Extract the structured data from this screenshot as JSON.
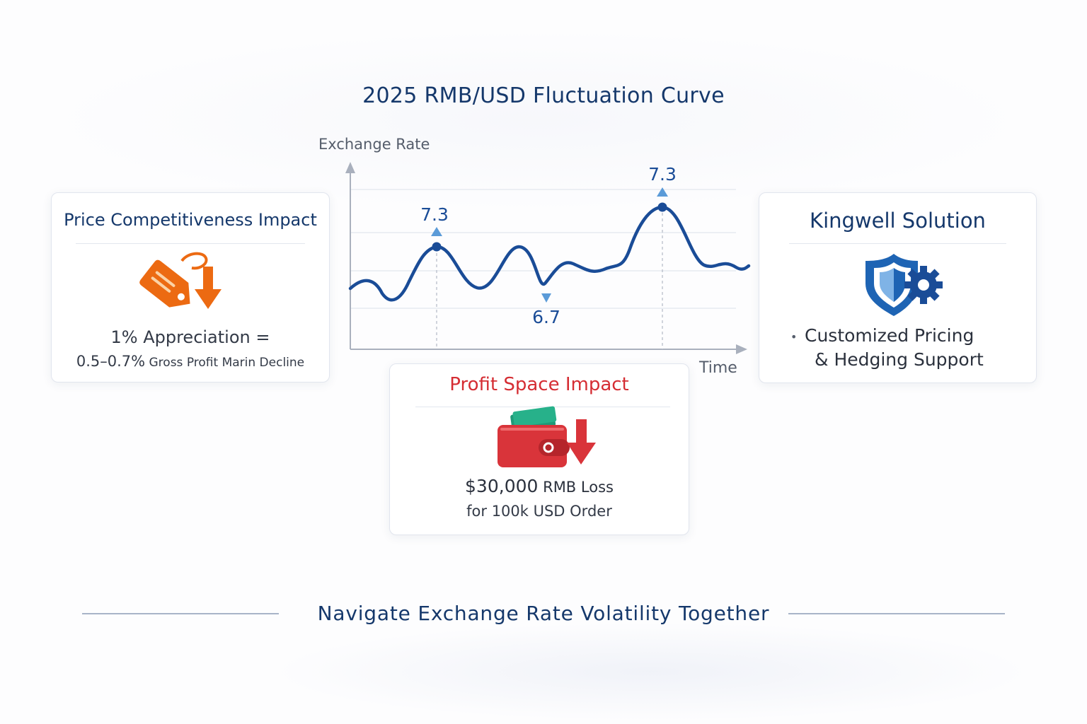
{
  "title": "2025 RMB/USD Fluctuation Curve",
  "chart_data": {
    "type": "line",
    "xlabel": "Time",
    "ylabel": "Exchange Rate",
    "annotations": [
      {
        "label": "7.3",
        "marker": "peak"
      },
      {
        "label": "6.7",
        "marker": "trough"
      },
      {
        "label": "7.3",
        "marker": "peak"
      }
    ],
    "grid": true,
    "line_color": "#1a4c97"
  },
  "cards": {
    "price": {
      "title": "Price Competitiveness Impact",
      "line1": "1% Appreciation =",
      "line2_big": "0.5–0.7%",
      "line2_small": " Gross Profit Marin Decline",
      "icon": "price-tag-down-icon",
      "accent": "#ec6a12"
    },
    "profit": {
      "title": "Profit Space Impact",
      "line1_big": "$30,000",
      "line1_small": " RMB Loss",
      "line2": "for 100k USD Order",
      "icon": "wallet-down-icon",
      "accent": "#d9343a"
    },
    "solution": {
      "title": "Kingwell Solution",
      "bullet": "•",
      "line1": "Customized Pricing",
      "line2": "& Hedging Support",
      "icon": "shield-gear-icon",
      "accent": "#1e64b4"
    }
  },
  "footer": "Navigate Exchange Rate Volatility Together"
}
